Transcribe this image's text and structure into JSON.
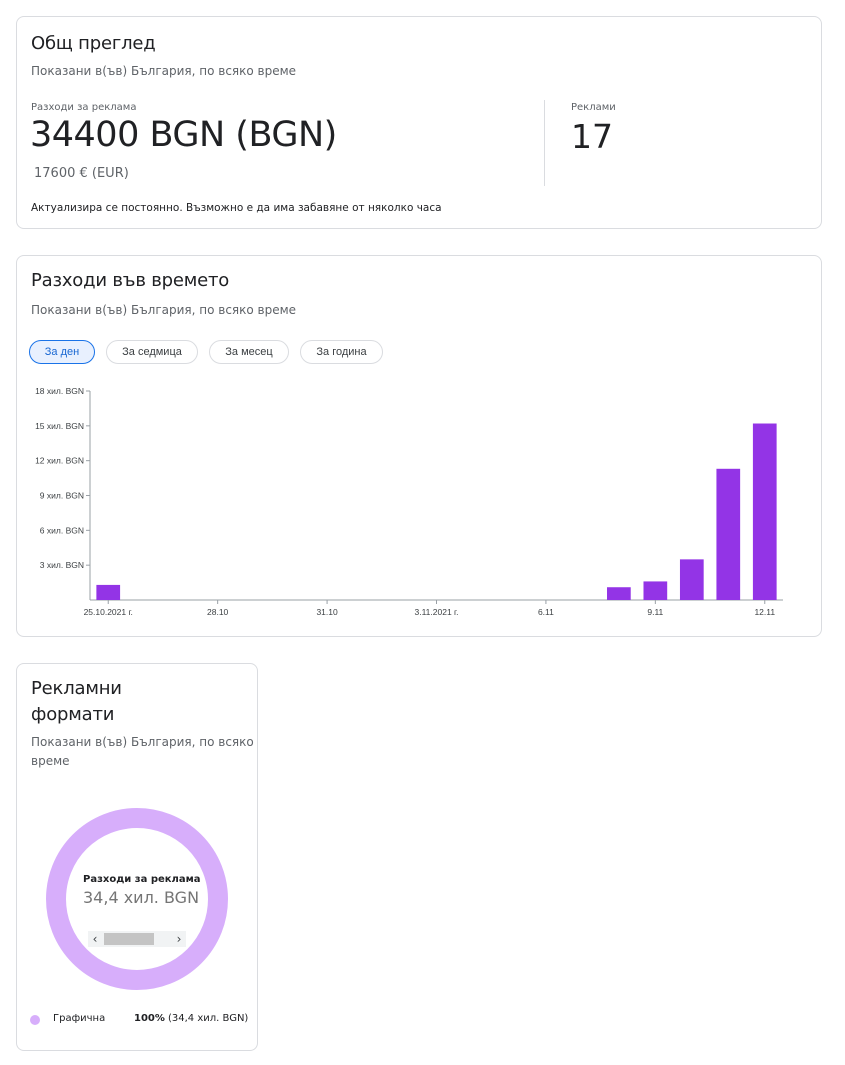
{
  "overview": {
    "title": "Общ преглед",
    "subtitle": "Показани в(ъв) България, по всяко време",
    "spend_label": "Разходи за реклама",
    "spend_value": "34400 BGN (BGN)",
    "spend_eur": "17600 € (EUR)",
    "ads_label": "Реклами",
    "ads_value": "17",
    "update_note": "Актуализира се постоянно. Възможно е да има забавяне от няколко часа"
  },
  "spend_over_time": {
    "title": "Разходи във времето",
    "subtitle": "Показани в(ъв) България, по всяко време",
    "chips": [
      {
        "label": "За ден",
        "active": true
      },
      {
        "label": "За седмица",
        "active": false
      },
      {
        "label": "За месец",
        "active": false
      },
      {
        "label": "За година",
        "active": false
      }
    ]
  },
  "chart_data": {
    "type": "bar",
    "title": "",
    "xlabel": "",
    "ylabel": "",
    "ylim": [
      0,
      18000
    ],
    "y_ticks": [
      {
        "value": 3000,
        "label": "3 хил. BGN"
      },
      {
        "value": 6000,
        "label": "6 хил. BGN"
      },
      {
        "value": 9000,
        "label": "9 хил. BGN"
      },
      {
        "value": 12000,
        "label": "12 хил. BGN"
      },
      {
        "value": 15000,
        "label": "15 хил. BGN"
      },
      {
        "value": 18000,
        "label": "18 хил. BGN"
      }
    ],
    "x_tick_labels": [
      {
        "date": "2021-10-25",
        "label": "25.10.2021 г."
      },
      {
        "date": "2021-10-28",
        "label": "28.10"
      },
      {
        "date": "2021-10-31",
        "label": "31.10"
      },
      {
        "date": "2021-11-03",
        "label": "3.11.2021 г."
      },
      {
        "date": "2021-11-06",
        "label": "6.11"
      },
      {
        "date": "2021-11-09",
        "label": "9.11"
      },
      {
        "date": "2021-11-12",
        "label": "12.11"
      }
    ],
    "categories": [
      "2021-10-25",
      "2021-10-26",
      "2021-10-27",
      "2021-10-28",
      "2021-10-29",
      "2021-10-30",
      "2021-10-31",
      "2021-11-01",
      "2021-11-02",
      "2021-11-03",
      "2021-11-04",
      "2021-11-05",
      "2021-11-06",
      "2021-11-07",
      "2021-11-08",
      "2021-11-09",
      "2021-11-10",
      "2021-11-11",
      "2021-11-12"
    ],
    "values": [
      1300,
      0,
      0,
      0,
      0,
      0,
      0,
      0,
      0,
      0,
      0,
      0,
      0,
      0,
      1100,
      1600,
      3500,
      11300,
      15200
    ],
    "color": "#9334e6",
    "grid": false
  },
  "formats": {
    "title_line1": "Рекламни",
    "title_line2": "формати",
    "subtitle_line1": "Показани в(ъв) България, по всяко",
    "subtitle_line2": "време",
    "center_label": "Разходи за реклама",
    "center_value": "34,4 хил. BGN",
    "donut_color": "#d7aefb",
    "legend": [
      {
        "name": "Графична",
        "percent": "100%",
        "amount": "(34,4 хил. BGN)",
        "color": "#d7aefb",
        "fraction": 1.0
      }
    ]
  }
}
